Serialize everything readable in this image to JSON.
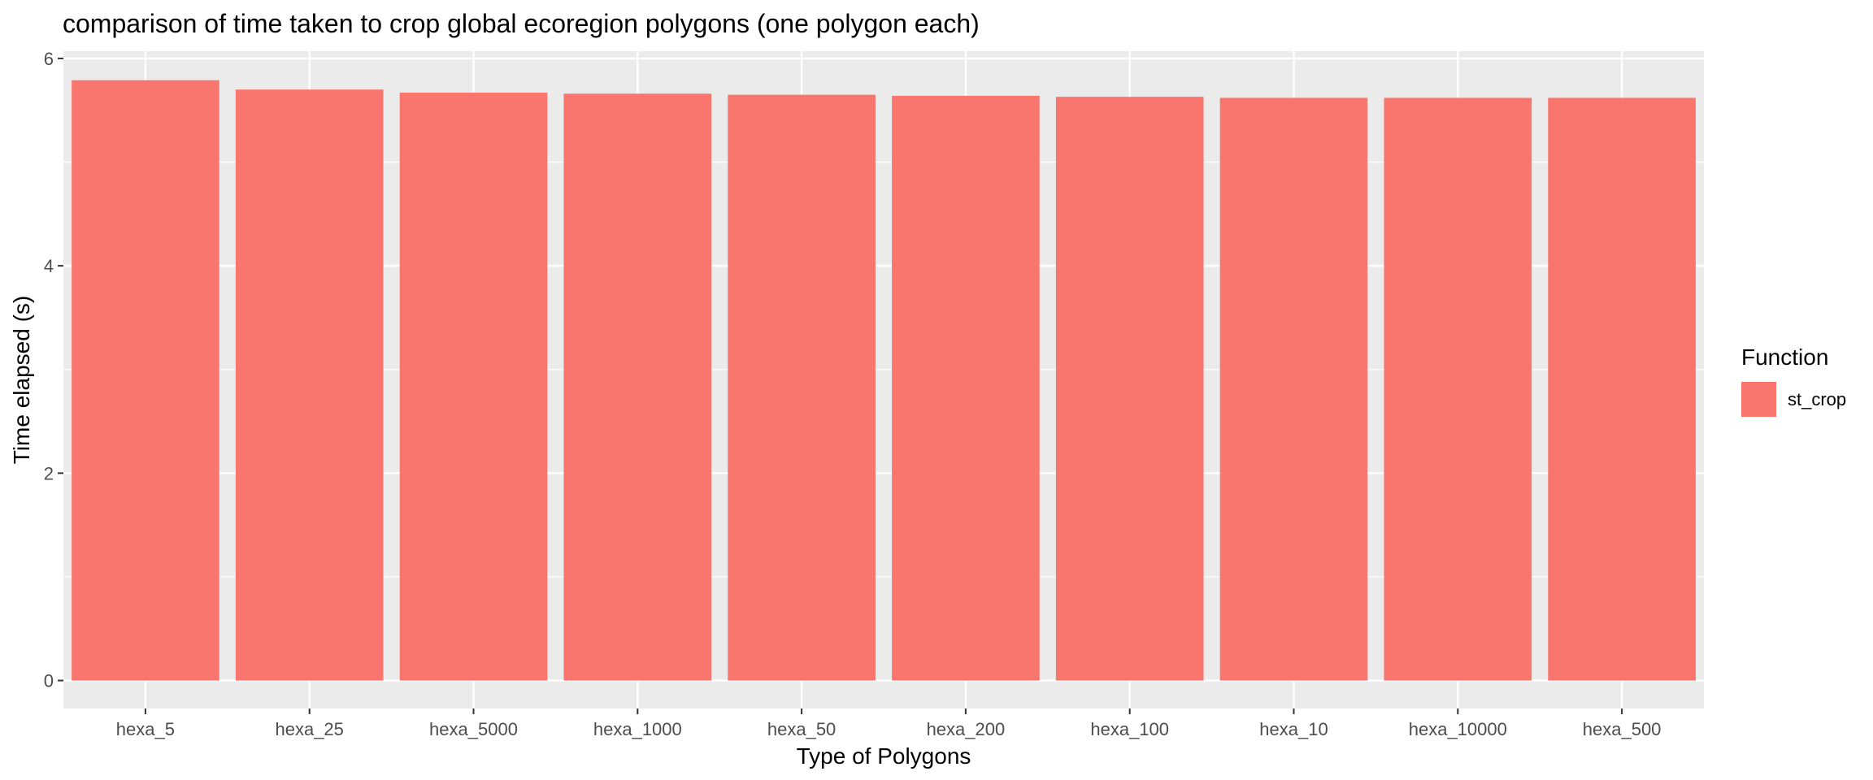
{
  "chart_data": {
    "type": "bar",
    "title": "comparison of time taken to crop global ecoregion polygons (one polygon each)",
    "xlabel": "Type of Polygons",
    "ylabel": "Time elapsed (s)",
    "categories": [
      "hexa_5",
      "hexa_25",
      "hexa_5000",
      "hexa_1000",
      "hexa_50",
      "hexa_200",
      "hexa_100",
      "hexa_10",
      "hexa_10000",
      "hexa_500"
    ],
    "series": [
      {
        "name": "st_crop",
        "values": [
          5.79,
          5.7,
          5.67,
          5.66,
          5.65,
          5.64,
          5.63,
          5.62,
          5.62,
          5.62
        ]
      }
    ],
    "ylim": [
      -0.27,
      6.07
    ],
    "yticks": [
      0,
      2,
      4,
      6
    ],
    "grid": true,
    "legend": {
      "title": "Function",
      "position": "right"
    },
    "bar_color": "#F8766D",
    "panel_color": "#EBEBEB",
    "grid_color": "#FFFFFF"
  }
}
